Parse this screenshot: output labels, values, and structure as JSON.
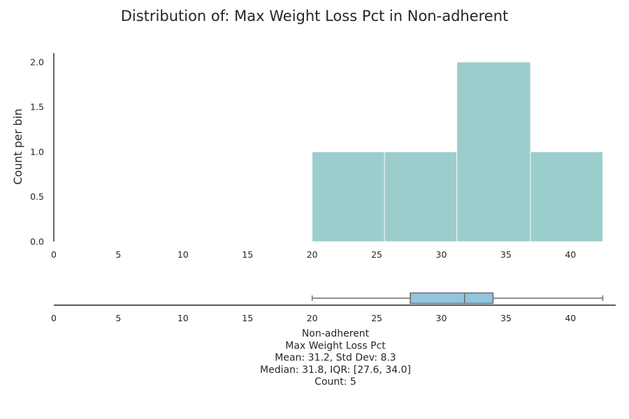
{
  "chart_data": {
    "type": "histogram-with-boxplot",
    "title": "Distribution of: Max Weight Loss Pct in Non-adherent",
    "ylabel": "Count per bin",
    "xlabel": "",
    "xlim": [
      0,
      43.5
    ],
    "ylim": [
      0,
      2.1
    ],
    "x_ticks": [
      "0",
      "5",
      "10",
      "15",
      "20",
      "25",
      "30",
      "35",
      "40"
    ],
    "y_ticks": [
      "0.0",
      "0.5",
      "1.0",
      "1.5",
      "2.0"
    ],
    "bar_color": "#9ccdcd",
    "bins": [
      {
        "x0": 20.0,
        "x1": 25.6,
        "count": 1
      },
      {
        "x0": 25.6,
        "x1": 31.2,
        "count": 1
      },
      {
        "x0": 31.2,
        "x1": 36.9,
        "count": 2
      },
      {
        "x0": 36.9,
        "x1": 42.5,
        "count": 1
      }
    ],
    "boxplot": {
      "min": 20.0,
      "q1": 27.6,
      "median": 31.8,
      "q3": 34.0,
      "max": 42.5,
      "box_color": "#92c6df"
    },
    "stats_lines": [
      "Non-adherent",
      "Max Weight Loss Pct",
      "Mean: 31.2, Std Dev: 8.3",
      "Median: 31.8, IQR: [27.6, 34.0]",
      "Count: 5"
    ]
  }
}
